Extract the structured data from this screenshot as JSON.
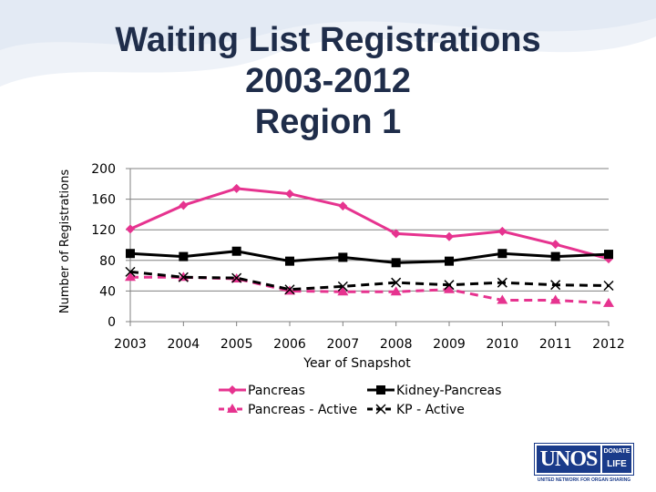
{
  "title_lines": [
    "Waiting List Registrations",
    "2003-2012",
    "Region 1"
  ],
  "logo": {
    "main": "UNOS",
    "right_top": "DONATE",
    "right_bottom": "LIFE",
    "sub": "UNITED NETWORK FOR ORGAN SHARING"
  },
  "colors": {
    "pink": "#e6338f",
    "black": "#000000",
    "title": "#1f2d4a",
    "grid": "#808080",
    "wave": "#e8eef6"
  },
  "chart_data": {
    "type": "line",
    "title": "",
    "xlabel": "Year of Snapshot",
    "ylabel": "Number of Registrations",
    "x": [
      "2003",
      "2004",
      "2005",
      "2006",
      "2007",
      "2008",
      "2009",
      "2010",
      "2011",
      "2012"
    ],
    "ylim": [
      0,
      200
    ],
    "yticks": [
      0,
      40,
      80,
      120,
      160,
      200
    ],
    "grid": true,
    "legend": "bottom",
    "series": [
      {
        "name": "Pancreas",
        "values": [
          121,
          152,
          174,
          167,
          151,
          115,
          111,
          118,
          101,
          82
        ],
        "color": "#e6338f",
        "marker": "diamond",
        "dash": "solid"
      },
      {
        "name": "Kidney-Pancreas",
        "values": [
          89,
          85,
          92,
          79,
          84,
          77,
          79,
          89,
          85,
          88
        ],
        "color": "#000000",
        "marker": "square",
        "dash": "solid"
      },
      {
        "name": "Pancreas - Active",
        "values": [
          58,
          58,
          56,
          40,
          39,
          39,
          42,
          28,
          28,
          24
        ],
        "color": "#e6338f",
        "marker": "triangle",
        "dash": "dashed"
      },
      {
        "name": "KP - Active",
        "values": [
          65,
          58,
          57,
          42,
          46,
          51,
          48,
          51,
          48,
          47
        ],
        "color": "#000000",
        "marker": "x",
        "dash": "dashed"
      }
    ]
  }
}
